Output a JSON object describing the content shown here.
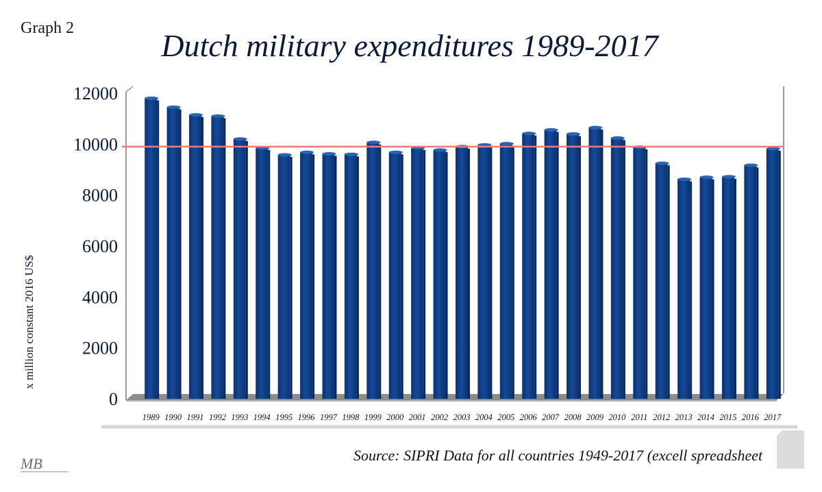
{
  "page": {
    "graph_label": "Graph 2",
    "source": "Source: SIPRI  Data for all countries 1949-2017 (excell spreadsheet",
    "signature": "MB"
  },
  "colors": {
    "bar": "#0e3f86",
    "bar_highlight": "#2a63b3",
    "bar_shadow": "#082a5e",
    "floor": "#8c8c8c",
    "reference_line": "#f07a7a",
    "axis_text": "#0c1a3a"
  },
  "chart_data": {
    "type": "bar",
    "title": "Dutch military expenditures 1989-2017",
    "ylabel": "x million constant 2016 US$",
    "xlabel": "",
    "ylim": [
      0,
      12000
    ],
    "yticks": [
      0,
      2000,
      4000,
      6000,
      8000,
      10000,
      12000
    ],
    "grid": false,
    "reference_line": 9900,
    "categories": [
      "1989",
      "1990",
      "1991",
      "1992",
      "1993",
      "1994",
      "1995",
      "1996",
      "1997",
      "1998",
      "1999",
      "2000",
      "2001",
      "2002",
      "2003",
      "2004",
      "2005",
      "2006",
      "2007",
      "2008",
      "2009",
      "2010",
      "2011",
      "2012",
      "2013",
      "2014",
      "2015",
      "2016",
      "2017"
    ],
    "values": [
      11800,
      11450,
      11150,
      11100,
      10200,
      9850,
      9580,
      9680,
      9620,
      9600,
      10070,
      9680,
      9850,
      9770,
      9900,
      9970,
      10020,
      10420,
      10560,
      10400,
      10650,
      10240,
      9880,
      9250,
      8620,
      8700,
      8720,
      9170,
      9820
    ]
  }
}
